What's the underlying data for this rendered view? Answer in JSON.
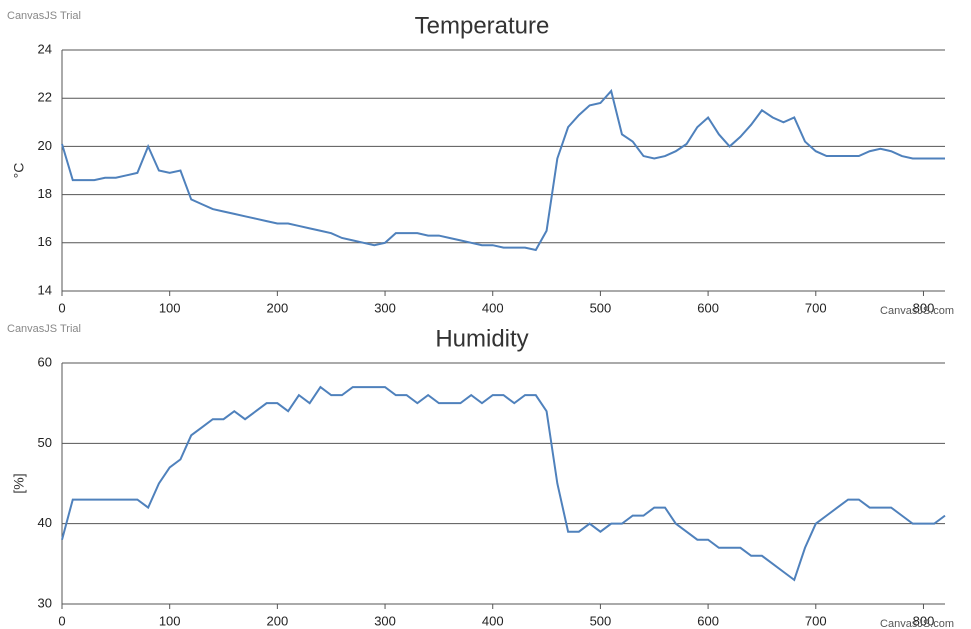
{
  "chart_data": [
    {
      "type": "line",
      "title": "Temperature",
      "y_label": "°C",
      "watermark": "CanvasJS Trial",
      "credit": "CanvasJS.com",
      "xlim": [
        0,
        820
      ],
      "xticks": [
        0,
        100,
        200,
        300,
        400,
        500,
        600,
        700,
        800
      ],
      "ylim": [
        14,
        24
      ],
      "yticks": [
        14,
        16,
        18,
        20,
        22,
        24
      ],
      "grid": true,
      "x": [
        0,
        10,
        20,
        30,
        40,
        50,
        60,
        70,
        80,
        90,
        100,
        110,
        120,
        130,
        140,
        150,
        160,
        170,
        180,
        190,
        200,
        210,
        220,
        230,
        240,
        250,
        260,
        270,
        280,
        290,
        300,
        310,
        320,
        330,
        340,
        350,
        360,
        370,
        380,
        390,
        400,
        410,
        420,
        430,
        440,
        450,
        460,
        470,
        480,
        490,
        500,
        510,
        520,
        530,
        540,
        550,
        560,
        570,
        580,
        590,
        600,
        610,
        620,
        630,
        640,
        650,
        660,
        670,
        680,
        690,
        700,
        710,
        720,
        730,
        740,
        750,
        760,
        770,
        780,
        790,
        800,
        810,
        820
      ],
      "series": [
        {
          "color": "#4f81bc",
          "values": [
            20.1,
            18.6,
            18.6,
            18.6,
            18.7,
            18.7,
            18.8,
            18.9,
            20.0,
            19.0,
            18.9,
            19.0,
            17.8,
            17.6,
            17.4,
            17.3,
            17.2,
            17.1,
            17.0,
            16.9,
            16.8,
            16.8,
            16.7,
            16.6,
            16.5,
            16.4,
            16.2,
            16.1,
            16.0,
            15.9,
            16.0,
            16.4,
            16.4,
            16.4,
            16.3,
            16.3,
            16.2,
            16.1,
            16.0,
            15.9,
            15.9,
            15.8,
            15.8,
            15.8,
            15.7,
            16.5,
            19.5,
            20.8,
            21.3,
            21.7,
            21.8,
            22.3,
            20.5,
            20.2,
            19.6,
            19.5,
            19.6,
            19.8,
            20.1,
            20.8,
            21.2,
            20.5,
            20.0,
            20.4,
            20.9,
            21.5,
            21.2,
            21.0,
            21.2,
            20.2,
            19.8,
            19.6,
            19.6,
            19.6,
            19.6,
            19.8,
            19.9,
            19.8,
            19.6,
            19.5,
            19.5,
            19.5,
            19.5
          ]
        }
      ]
    },
    {
      "type": "line",
      "title": "Humidity",
      "y_label": "[%]",
      "watermark": "CanvasJS Trial",
      "credit": "CanvasJS.com",
      "xlim": [
        0,
        820
      ],
      "xticks": [
        0,
        100,
        200,
        300,
        400,
        500,
        600,
        700,
        800
      ],
      "ylim": [
        30,
        60
      ],
      "yticks": [
        30,
        40,
        50,
        60
      ],
      "grid": true,
      "x": [
        0,
        10,
        20,
        30,
        40,
        50,
        60,
        70,
        80,
        90,
        100,
        110,
        120,
        130,
        140,
        150,
        160,
        170,
        180,
        190,
        200,
        210,
        220,
        230,
        240,
        250,
        260,
        270,
        280,
        290,
        300,
        310,
        320,
        330,
        340,
        350,
        360,
        370,
        380,
        390,
        400,
        410,
        420,
        430,
        440,
        450,
        460,
        470,
        480,
        490,
        500,
        510,
        520,
        530,
        540,
        550,
        560,
        570,
        580,
        590,
        600,
        610,
        620,
        630,
        640,
        650,
        660,
        670,
        680,
        690,
        700,
        710,
        720,
        730,
        740,
        750,
        760,
        770,
        780,
        790,
        800,
        810,
        820
      ],
      "series": [
        {
          "color": "#4f81bc",
          "values": [
            38,
            43,
            43,
            43,
            43,
            43,
            43,
            43,
            42,
            45,
            47,
            48,
            51,
            52,
            53,
            53,
            54,
            53,
            54,
            55,
            55,
            54,
            56,
            55,
            57,
            56,
            56,
            57,
            57,
            57,
            57,
            56,
            56,
            55,
            56,
            55,
            55,
            55,
            56,
            55,
            56,
            56,
            55,
            56,
            56,
            54,
            45,
            39,
            39,
            40,
            39,
            40,
            40,
            41,
            41,
            42,
            42,
            40,
            39,
            38,
            38,
            37,
            37,
            37,
            36,
            36,
            35,
            34,
            33,
            37,
            40,
            41,
            42,
            43,
            43,
            42,
            42,
            42,
            41,
            40,
            40,
            40,
            41
          ]
        }
      ]
    }
  ]
}
